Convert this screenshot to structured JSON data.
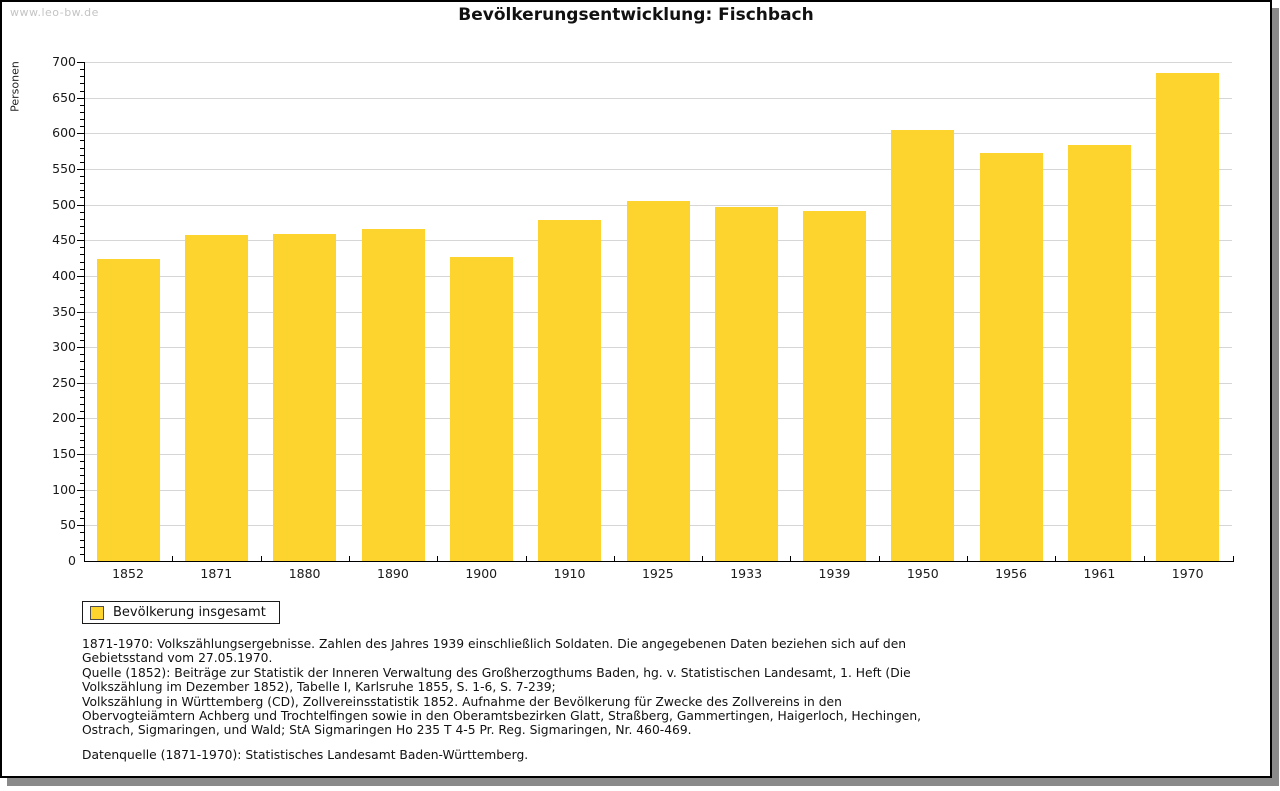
{
  "page": {
    "watermark": "www.leo-bw.de",
    "title": "Bevölkerungsentwicklung: Fischbach"
  },
  "chart_data": {
    "type": "bar",
    "title": "Bevölkerungsentwicklung: Fischbach",
    "xlabel": "",
    "ylabel": "Personen",
    "categories": [
      "1852",
      "1871",
      "1880",
      "1890",
      "1900",
      "1910",
      "1925",
      "1933",
      "1939",
      "1950",
      "1956",
      "1961",
      "1970"
    ],
    "series": [
      {
        "name": "Bevölkerung insgesamt",
        "values": [
          424,
          458,
          459,
          466,
          426,
          479,
          505,
          496,
          491,
          605,
          573,
          584,
          684
        ]
      }
    ],
    "ylim": [
      0,
      700
    ],
    "ytick_step": 50,
    "yminor_step": 10,
    "grid": true,
    "legend_position": "bottom-left",
    "bar_color": "#fdd32e"
  },
  "legend": {
    "label": "Bevölkerung insgesamt",
    "swatch_color": "#fdd32e"
  },
  "footer": {
    "paragraphs": [
      "1871-1970: Volkszählungsergebnisse. Zahlen des Jahres 1939 einschließlich Soldaten. Die angegebenen Daten beziehen sich auf den Gebietsstand vom 27.05.1970.",
      "Quelle (1852): Beiträge zur Statistik der Inneren Verwaltung des Großherzogthums Baden, hg. v. Statistischen Landesamt, 1. Heft (Die Volkszählung im Dezember 1852), Tabelle I, Karlsruhe 1855, S. 1-6, S. 7-239;",
      "Volkszählung in Württemberg (CD), Zollvereinsstatistik 1852. Aufnahme der Bevölkerung für Zwecke des Zollvereins in den Obervogteiämtern Achberg und Trochtelfingen sowie in den Oberamtsbezirken Glatt, Straßberg, Gammertingen, Haigerloch, Hechingen, Ostrach, Sigmaringen, und Wald; StA Sigmaringen Ho 235 T 4-5 Pr. Reg. Sigmaringen, Nr. 460-469.",
      "Datenquelle (1871-1970): Statistisches Landesamt Baden-Württemberg."
    ]
  },
  "colors": {
    "bar": "#fdd32e",
    "grid": "#d6d6d6",
    "axis": "#000000",
    "watermark": "#c4c4c4",
    "frame_shadow": "#8a8a8a"
  }
}
